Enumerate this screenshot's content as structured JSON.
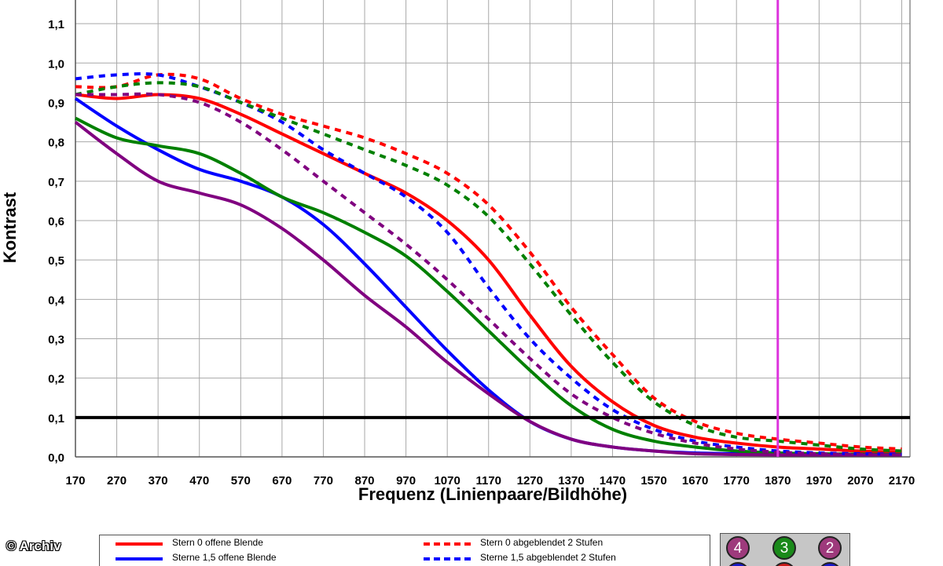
{
  "chart_data": {
    "type": "line",
    "title": "",
    "xlabel": "Frequenz (Linienpaare/Bildhöhe)",
    "ylabel": "Kontrast",
    "xlim": [
      170,
      2190
    ],
    "ylim": [
      0.0,
      1.18
    ],
    "x_ticks": [
      "170",
      "270",
      "370",
      "470",
      "570",
      "670",
      "770",
      "870",
      "970",
      "1070",
      "1170",
      "1270",
      "1370",
      "1470",
      "1570",
      "1670",
      "1770",
      "1870",
      "1970",
      "2070",
      "2170"
    ],
    "y_ticks": [
      "0,0",
      "0,1",
      "0,2",
      "0,3",
      "0,4",
      "0,5",
      "0,6",
      "0,7",
      "0,8",
      "0,9",
      "1,0",
      "1,1"
    ],
    "grid": true,
    "reference_hline": 0.1,
    "reference_vline": 1870,
    "legend_position": "bottom",
    "x": [
      170,
      270,
      370,
      470,
      570,
      670,
      770,
      870,
      970,
      1070,
      1170,
      1270,
      1370,
      1470,
      1570,
      1670,
      1770,
      1870,
      1970,
      2070,
      2170
    ],
    "series": [
      {
        "name": "Stern 0 offene Blende",
        "color": "#ff0000",
        "dash": false,
        "values": [
          0.92,
          0.91,
          0.92,
          0.91,
          0.87,
          0.82,
          0.77,
          0.72,
          0.67,
          0.6,
          0.5,
          0.36,
          0.23,
          0.14,
          0.08,
          0.05,
          0.035,
          0.025,
          0.02,
          0.015,
          0.012
        ]
      },
      {
        "name": "Sterne 1,5 offene Blende",
        "color": "#0000ff",
        "dash": false,
        "values": [
          0.91,
          0.84,
          0.78,
          0.73,
          0.7,
          0.66,
          0.59,
          0.49,
          0.38,
          0.27,
          0.17,
          0.09,
          0.045,
          0.025,
          0.015,
          0.01,
          0.008,
          0.006,
          0.005,
          0.005,
          0.005
        ]
      },
      {
        "name": "",
        "color": "#008000",
        "dash": false,
        "values": [
          0.86,
          0.81,
          0.79,
          0.77,
          0.72,
          0.66,
          0.62,
          0.57,
          0.51,
          0.42,
          0.32,
          0.22,
          0.13,
          0.07,
          0.04,
          0.025,
          0.015,
          0.01,
          0.008,
          0.007,
          0.006
        ]
      },
      {
        "name": "",
        "color": "#800080",
        "dash": false,
        "values": [
          0.85,
          0.77,
          0.7,
          0.67,
          0.64,
          0.58,
          0.5,
          0.41,
          0.33,
          0.24,
          0.16,
          0.09,
          0.045,
          0.025,
          0.015,
          0.008,
          0.006,
          0.005,
          0.005,
          0.005,
          0.005
        ]
      },
      {
        "name": "Stern 0 abgeblendet 2 Stufen",
        "color": "#ff0000",
        "dash": true,
        "values": [
          0.94,
          0.94,
          0.97,
          0.96,
          0.91,
          0.87,
          0.84,
          0.81,
          0.77,
          0.72,
          0.64,
          0.52,
          0.38,
          0.26,
          0.15,
          0.09,
          0.06,
          0.045,
          0.035,
          0.025,
          0.02
        ]
      },
      {
        "name": "Sterne 1,5 abgeblendet 2 Stufen",
        "color": "#0000ff",
        "dash": true,
        "values": [
          0.96,
          0.97,
          0.97,
          0.94,
          0.9,
          0.85,
          0.78,
          0.72,
          0.66,
          0.57,
          0.43,
          0.3,
          0.2,
          0.12,
          0.07,
          0.04,
          0.025,
          0.015,
          0.01,
          0.008,
          0.007
        ]
      },
      {
        "name": "",
        "color": "#008000",
        "dash": true,
        "values": [
          0.92,
          0.94,
          0.95,
          0.94,
          0.9,
          0.86,
          0.82,
          0.78,
          0.74,
          0.69,
          0.61,
          0.49,
          0.36,
          0.24,
          0.14,
          0.08,
          0.05,
          0.04,
          0.03,
          0.02,
          0.015
        ]
      },
      {
        "name": "",
        "color": "#800080",
        "dash": true,
        "values": [
          0.92,
          0.92,
          0.92,
          0.9,
          0.85,
          0.78,
          0.7,
          0.62,
          0.54,
          0.45,
          0.35,
          0.25,
          0.16,
          0.1,
          0.06,
          0.035,
          0.02,
          0.012,
          0.008,
          0.006,
          0.005
        ]
      }
    ]
  },
  "markers": [
    {
      "label": "4",
      "color": "#9e3a7c"
    },
    {
      "label": "3",
      "color": "#1a8a1a"
    },
    {
      "label": "2",
      "color": "#9e3a7c"
    }
  ],
  "watermark": "© Archiv"
}
